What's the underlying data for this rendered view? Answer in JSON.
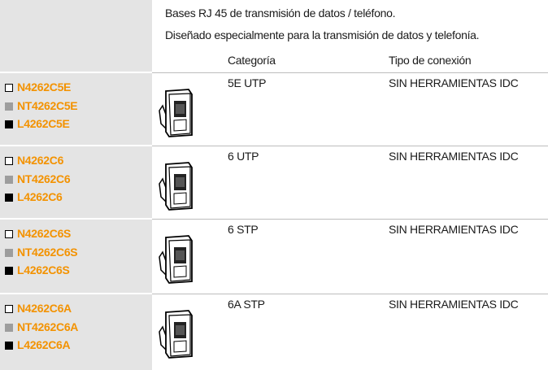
{
  "header": {
    "line1": "Bases RJ 45 de transmisión de datos / teléfono.",
    "line2": "Diseñado especialmente para la transmisión de datos y telefonía."
  },
  "table": {
    "columns": [
      "Categoría",
      "Tipo de conexión"
    ],
    "rows": [
      {
        "codes": [
          "N4262C5E",
          "NT4262C5E",
          "L4262C5E"
        ],
        "category": "5E UTP",
        "connection": "SIN HERRAMIENTAS IDC"
      },
      {
        "codes": [
          "N4262C6",
          "NT4262C6",
          "L4262C6"
        ],
        "category": "6 UTP",
        "connection": "SIN HERRAMIENTAS IDC"
      },
      {
        "codes": [
          "N4262C6S",
          "NT4262C6S",
          "L4262C6S"
        ],
        "category": "6 STP",
        "connection": "SIN HERRAMIENTAS IDC"
      },
      {
        "codes": [
          "N4262C6A",
          "NT4262C6A",
          "L4262C6A"
        ],
        "category": "6A STP",
        "connection": "SIN HERRAMIENTAS IDC"
      }
    ]
  }
}
